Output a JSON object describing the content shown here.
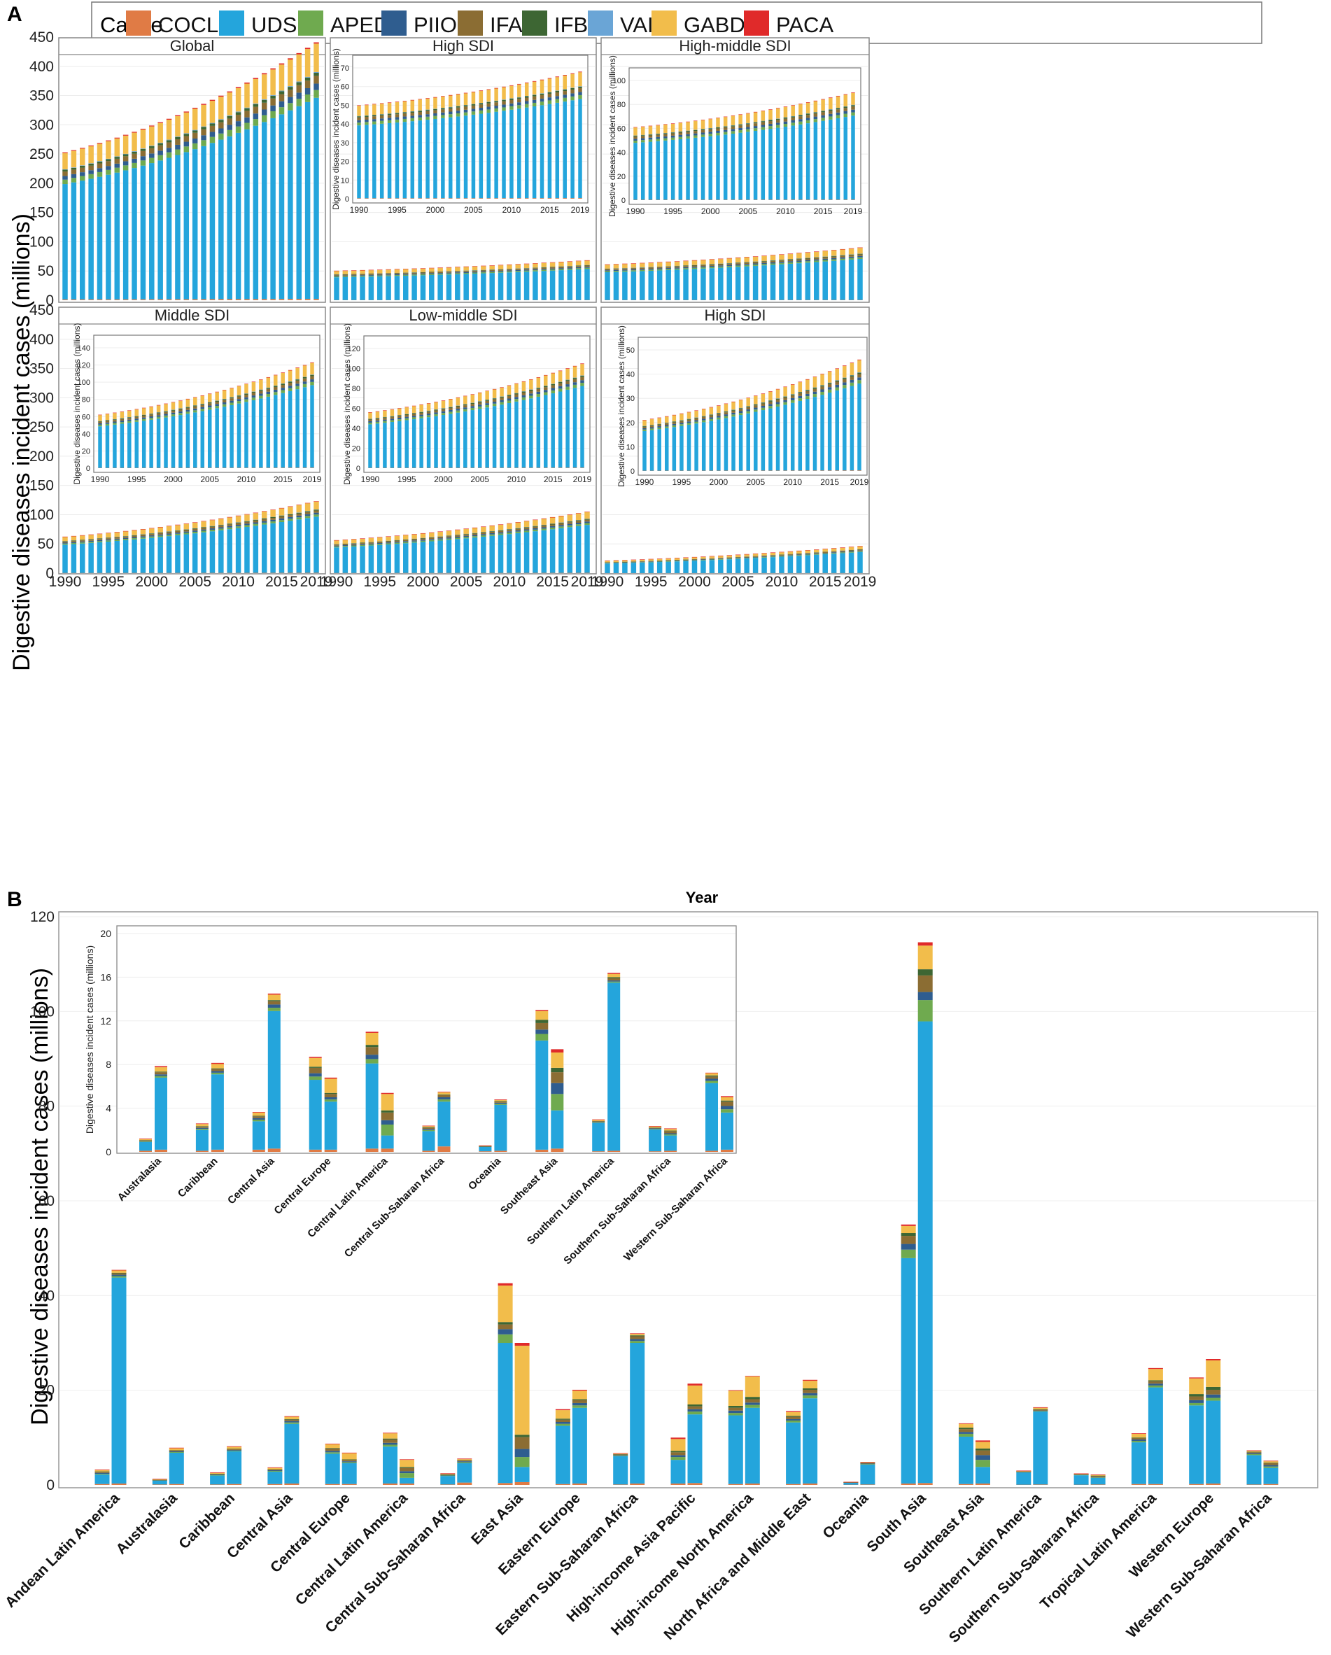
{
  "panel_labels": {
    "a": "A",
    "b": "B"
  },
  "legend": {
    "title": "Cause",
    "items": [
      {
        "name": "COCLD",
        "color": "#e07b45"
      },
      {
        "name": "UDSD",
        "color": "#24a5dc"
      },
      {
        "name": "APED",
        "color": "#6faa4f"
      },
      {
        "name": "PIIO",
        "color": "#2f5d8f"
      },
      {
        "name": "IFAH",
        "color": "#8b6d33"
      },
      {
        "name": "IFBD",
        "color": "#3d6633"
      },
      {
        "name": "VAID",
        "color": "#6aa5d6"
      },
      {
        "name": "GABD",
        "color": "#f2bd4b"
      },
      {
        "name": "PACA",
        "color": "#e02a2a"
      }
    ]
  },
  "chart_data": [
    {
      "id": "A",
      "type": "bar",
      "stacked": true,
      "ylabel": "Digestive diseases incident cases (millions)",
      "xlabel": "Year",
      "ylim": [
        0,
        450
      ],
      "yticks": [
        0,
        50,
        100,
        150,
        200,
        250,
        300,
        350,
        400,
        450
      ],
      "xticks": [
        "1990",
        "1995",
        "2000",
        "2005",
        "2010",
        "2015",
        "2019"
      ],
      "years": [
        1990,
        2019
      ],
      "inset_ylabel": "Digestive diseases incident cases (millions)",
      "stack_shares": {
        "COCLD": 0.005,
        "UDSD": 0.78,
        "APED": 0.03,
        "PIIO": 0.025,
        "IFAH": 0.03,
        "IFBD": 0.012,
        "VAID": 0.003,
        "GABD": 0.11,
        "PACA": 0.005
      },
      "facets": [
        {
          "title": "Global",
          "total_1990": 253,
          "total_2019": 441
        },
        {
          "title": "High SDI",
          "total_1990": 50,
          "total_2019": 68,
          "inset": {
            "ylim": [
              0,
              70
            ],
            "yticks": [
              0,
              10,
              20,
              30,
              40,
              50,
              60,
              70
            ]
          }
        },
        {
          "title": "High-middle SDI",
          "total_1990": 61,
          "total_2019": 90,
          "inset": {
            "ylim": [
              0,
              100
            ],
            "yticks": [
              0,
              20,
              40,
              60,
              80,
              100
            ]
          }
        },
        {
          "title": "Middle SDI",
          "total_1990": 62,
          "total_2019": 123,
          "inset": {
            "ylim": [
              0,
              140
            ],
            "yticks": [
              0,
              20,
              40,
              60,
              80,
              100,
              120,
              140
            ]
          }
        },
        {
          "title": "Low-middle SDI",
          "total_1990": 56,
          "total_2019": 105,
          "inset": {
            "ylim": [
              0,
              120
            ],
            "yticks": [
              0,
              20,
              40,
              60,
              80,
              100,
              120
            ]
          }
        },
        {
          "title": "High SDI",
          "total_1990": 21,
          "total_2019": 46,
          "inset": {
            "ylim": [
              0,
              50
            ],
            "yticks": [
              0,
              10,
              20,
              30,
              40,
              50
            ]
          }
        }
      ]
    },
    {
      "id": "B",
      "type": "bar",
      "stacked": true,
      "ylabel": "Digestive diseases incident cases (millions)",
      "ylim": [
        0,
        120
      ],
      "yticks": [
        0,
        20,
        40,
        60,
        80,
        100,
        120
      ],
      "series_order": [
        "COCLD",
        "UDSD",
        "APED",
        "PIIO",
        "IFAH",
        "IFBD",
        "VAID",
        "GABD",
        "PACA"
      ],
      "pair_years": [
        1990,
        2019
      ],
      "regions": [
        {
          "name": "Andean Latin America",
          "pairs": [
            [
              0.2,
              2.0,
              0.15,
              0.2,
              0.2,
              0.1,
              0,
              0.3,
              0.05
            ],
            [
              0.3,
              43.5,
              0.3,
              0.3,
              0.3,
              0.1,
              0,
              0.5,
              0.1
            ]
          ]
        },
        {
          "name": "Australasia",
          "pairs": [
            [
              0.1,
              0.8,
              0.05,
              0.05,
              0.05,
              0.02,
              0,
              0.1,
              0.02
            ],
            [
              0.2,
              6.6,
              0.15,
              0.15,
              0.2,
              0.05,
              0,
              0.4,
              0.1
            ]
          ]
        },
        {
          "name": "Caribbean",
          "pairs": [
            [
              0.1,
              1.9,
              0.1,
              0.1,
              0.1,
              0.05,
              0,
              0.2,
              0.05
            ],
            [
              0.2,
              6.9,
              0.15,
              0.15,
              0.2,
              0.05,
              0,
              0.4,
              0.1
            ]
          ]
        },
        {
          "name": "Central Asia",
          "pairs": [
            [
              0.2,
              2.6,
              0.15,
              0.15,
              0.15,
              0.05,
              0,
              0.3,
              0.05
            ],
            [
              0.3,
              12.6,
              0.3,
              0.3,
              0.3,
              0.1,
              0,
              0.5,
              0.1
            ]
          ]
        },
        {
          "name": "Central Europe",
          "pairs": [
            [
              0.2,
              6.4,
              0.3,
              0.3,
              0.5,
              0.1,
              0,
              0.8,
              0.1
            ],
            [
              0.2,
              4.4,
              0.2,
              0.2,
              0.3,
              0.1,
              0,
              1.3,
              0.1
            ]
          ]
        },
        {
          "name": "Central Latin America",
          "pairs": [
            [
              0.3,
              7.8,
              0.4,
              0.4,
              0.7,
              0.2,
              0,
              1.1,
              0.1
            ],
            [
              0.3,
              1.2,
              1.0,
              0.4,
              0.7,
              0.2,
              0,
              1.5,
              0.1
            ]
          ]
        },
        {
          "name": "Central Sub-Saharan Africa",
          "pairs": [
            [
              0.1,
              1.8,
              0.1,
              0.1,
              0.1,
              0.05,
              0,
              0.1,
              0.05
            ],
            [
              0.5,
              4.1,
              0.2,
              0.2,
              0.2,
              0.05,
              0,
              0.2,
              0.05
            ]
          ]
        },
        {
          "name": "East Asia",
          "pairs": [
            [
              0.4,
              29.6,
              1.8,
              1.1,
              1.0,
              0.5,
              0,
              7.7,
              0.5
            ],
            [
              0.6,
              3.2,
              2.1,
              1.7,
              2.5,
              0.5,
              0,
              18.8,
              0.6
            ]
          ]
        },
        {
          "name": "Eastern Europe",
          "pairs": [
            [
              0.2,
              12.3,
              0.4,
              0.4,
              0.5,
              0.2,
              0,
              1.8,
              0.2
            ],
            [
              0.3,
              16.0,
              0.5,
              0.5,
              0.6,
              0.2,
              0,
              1.8,
              0.2
            ]
          ]
        },
        {
          "name": "Eastern Sub-Saharan Africa",
          "pairs": [
            [
              0.1,
              6.0,
              0.1,
              0.1,
              0.15,
              0.05,
              0,
              0.1,
              0.05
            ],
            [
              0.3,
              29.7,
              0.4,
              0.4,
              0.6,
              0.2,
              0,
              0.3,
              0.1
            ]
          ]
        },
        {
          "name": "High-income Asia Pacific",
          "pairs": [
            [
              0.3,
              5.0,
              0.6,
              0.4,
              0.6,
              0.3,
              0,
              2.5,
              0.3
            ],
            [
              0.4,
              14.5,
              0.6,
              0.5,
              0.6,
              0.4,
              0,
              4.0,
              0.4
            ]
          ]
        },
        {
          "name": "High-income North America",
          "pairs": [
            [
              0.2,
              14.5,
              0.5,
              0.5,
              0.6,
              0.4,
              0,
              3.2,
              0.1
            ],
            [
              0.3,
              16.0,
              0.6,
              0.5,
              0.7,
              0.5,
              0,
              4.3,
              0.1
            ]
          ]
        },
        {
          "name": "North Africa and Middle East",
          "pairs": [
            [
              0.2,
              13.0,
              0.4,
              0.3,
              0.5,
              0.2,
              0,
              0.8,
              0.2
            ],
            [
              0.3,
              18.0,
              0.6,
              0.5,
              0.7,
              0.3,
              0,
              1.6,
              0.2
            ]
          ]
        },
        {
          "name": "Oceania",
          "pairs": [
            [
              0.05,
              0.4,
              0.02,
              0.02,
              0.02,
              0.01,
              0,
              0.02,
              0.01
            ],
            [
              0.1,
              4.2,
              0.1,
              0.1,
              0.1,
              0.05,
              0,
              0.1,
              0.05
            ]
          ]
        },
        {
          "name": "South Asia",
          "pairs": [
            [
              0.3,
              47.6,
              1.8,
              1.2,
              1.7,
              0.6,
              0,
              1.5,
              0.3
            ],
            [
              0.4,
              97.5,
              4.5,
              1.7,
              3.5,
              1.3,
              0,
              5.0,
              0.7
            ]
          ]
        },
        {
          "name": "Southeast Asia",
          "pairs": [
            [
              0.2,
              10.0,
              0.6,
              0.4,
              0.6,
              0.3,
              0,
              0.8,
              0.1
            ],
            [
              0.3,
              3.5,
              1.5,
              1.0,
              1.0,
              0.4,
              0,
              1.4,
              0.3
            ]
          ]
        },
        {
          "name": "Southern Latin America",
          "pairs": [
            [
              0.05,
              2.6,
              0.05,
              0.05,
              0.05,
              0.02,
              0,
              0.1,
              0.03
            ],
            [
              0.1,
              15.4,
              0.1,
              0.1,
              0.2,
              0.1,
              0,
              0.3,
              0.1
            ]
          ]
        },
        {
          "name": "Southern Sub-Saharan Africa",
          "pairs": [
            [
              0.05,
              2.0,
              0.05,
              0.05,
              0.05,
              0.02,
              0,
              0.1,
              0.03
            ],
            [
              0.1,
              1.4,
              0.1,
              0.1,
              0.2,
              0.05,
              0,
              0.15,
              0.05
            ]
          ]
        },
        {
          "name": "Tropical Latin America",
          "pairs": [
            [
              0.2,
              8.8,
              0.3,
              0.3,
              0.3,
              0.1,
              0,
              0.8,
              0.1
            ],
            [
              0.2,
              20.4,
              0.4,
              0.4,
              0.5,
              0.2,
              0,
              2.4,
              0.2
            ]
          ]
        },
        {
          "name": "Western Europe",
          "pairs": [
            [
              0.2,
              16.6,
              0.5,
              0.6,
              0.8,
              0.5,
              0,
              3.3,
              0.2
            ],
            [
              0.3,
              17.5,
              0.6,
              0.7,
              1.0,
              0.6,
              0,
              5.6,
              0.3
            ]
          ]
        },
        {
          "name": "Western Sub-Saharan Africa",
          "pairs": [
            [
              0.1,
              6.2,
              0.2,
              0.2,
              0.2,
              0.1,
              0,
              0.2,
              0.05
            ],
            [
              0.2,
              3.4,
              0.3,
              0.3,
              0.4,
              0.1,
              0,
              0.3,
              0.1
            ]
          ]
        }
      ],
      "inset": {
        "ylabel": "Digestive diseases incident cases (millions)",
        "ylim": [
          0,
          20
        ],
        "yticks": [
          0,
          4,
          8,
          12,
          16,
          20
        ],
        "regions": [
          "Australasia",
          "Caribbean",
          "Central Asia",
          "Central Europe",
          "Central Latin America",
          "Central Sub-Saharan Africa",
          "Oceania",
          "Southeast Asia",
          "Southern Latin America",
          "Southern Sub-Saharan Africa",
          "Western Sub-Saharan Africa"
        ]
      }
    }
  ]
}
